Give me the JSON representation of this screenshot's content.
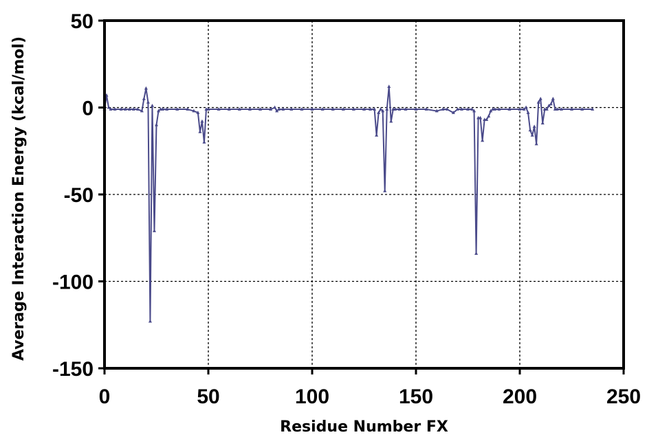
{
  "chart_data": {
    "type": "line",
    "title": "",
    "xlabel": "Residue Number FX",
    "ylabel": "Average Interaction  Energy (kcal/mol)",
    "xlim": [
      0,
      250
    ],
    "ylim": [
      -150,
      50
    ],
    "xticks": [
      0,
      50,
      100,
      150,
      200,
      250
    ],
    "yticks": [
      50,
      0,
      -50,
      -100,
      -150
    ],
    "grid": "dotted",
    "series_color": "#4a4a8a",
    "series": [
      {
        "x": [
          0,
          1,
          2,
          3,
          5,
          8,
          10,
          12,
          14,
          16,
          18,
          19,
          20,
          21,
          22,
          23,
          24,
          25,
          26,
          27,
          28,
          30,
          35,
          40,
          43,
          45,
          46,
          47,
          48,
          49,
          50,
          55,
          60,
          65,
          70,
          75,
          80,
          82,
          83,
          84,
          86,
          90,
          95,
          100,
          105,
          110,
          115,
          120,
          125,
          128,
          130,
          131,
          132,
          133,
          134,
          135,
          136,
          137,
          138,
          139,
          140,
          142,
          145,
          150,
          155,
          160,
          163,
          165,
          168,
          170,
          172,
          175,
          177,
          178,
          179,
          180,
          181,
          182,
          183,
          184,
          185,
          186,
          187,
          188,
          190,
          195,
          200,
          202,
          203,
          204,
          205,
          206,
          207,
          208,
          209,
          210,
          211,
          212,
          213,
          214,
          215,
          216,
          217,
          218,
          220,
          225,
          230,
          235
        ],
        "y": [
          -1,
          7,
          0,
          -1,
          -1,
          -1,
          -1,
          -1,
          -1,
          -1,
          -2,
          5,
          11,
          3,
          -123,
          1,
          -71,
          -10,
          -2,
          -1,
          -1,
          -1,
          -1,
          -1,
          -2,
          -3,
          -14,
          -8,
          -20,
          -1,
          -1,
          -1,
          -1,
          -1,
          -1,
          -1,
          -1,
          0,
          -2,
          -1,
          -1,
          -1,
          -1,
          -1,
          -1,
          -1,
          -1,
          -1,
          -1,
          -1,
          -1,
          -16,
          -3,
          -1,
          -2,
          -48,
          -1,
          12,
          -8,
          -1,
          -1,
          -1,
          -1,
          -1,
          -1,
          -2,
          -1,
          -1,
          -3,
          -1,
          -1,
          -1,
          -1,
          -2,
          -84,
          -6,
          -6,
          -19,
          -7,
          -7,
          -5,
          -2,
          -1,
          -1,
          -1,
          -1,
          -1,
          -1,
          0,
          -3,
          -13,
          -16,
          -11,
          -21,
          3,
          5,
          -9,
          -1,
          -1,
          1,
          2,
          5,
          -1,
          -1,
          -1,
          -1,
          -1,
          -1
        ]
      }
    ]
  }
}
